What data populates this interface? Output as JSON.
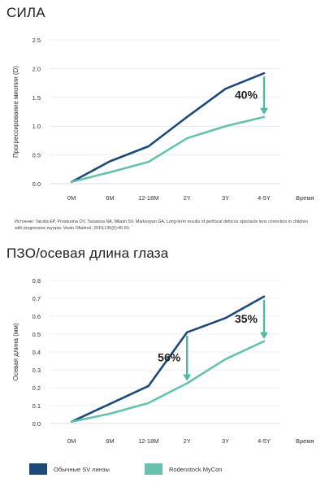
{
  "colors": {
    "series_dark": "#1c4a7a",
    "series_teal": "#66c2ae",
    "arrow": "#4fb9a3",
    "grid": "#dddddd",
    "text": "#333333"
  },
  "charts": [
    {
      "title": "СИЛА",
      "ylabel": "Прогрессирование миопии (D)",
      "xlabel": "Время",
      "citation": "Источник: Tarutta EP, Proskurina OV, Tarasova NA, Milash SV, Markosyan GA. Long-term results of perifocal defocus spectacle lens correction in children with progressive myopia. Vestn Oftalmol. 2019;135(5):46-53."
    },
    {
      "title": "ПЗО/осевая длина глаза",
      "ylabel": "Осевая длина (мм)",
      "xlabel": "Время"
    }
  ],
  "legend": [
    {
      "label": "Обычные SV линзы",
      "color": "#1c4a7a"
    },
    {
      "label": "Rodenstock MyCon",
      "color": "#66c2ae"
    }
  ],
  "chart_data": [
    {
      "type": "line",
      "title": "СИЛА",
      "categories": [
        "0M",
        "6M",
        "12-18M",
        "2Y",
        "3Y",
        "4-5Y"
      ],
      "series": [
        {
          "name": "Обычные SV линзы",
          "values": [
            0.03,
            0.39,
            0.65,
            1.16,
            1.65,
            1.92
          ]
        },
        {
          "name": "Rodenstock MyCon",
          "values": [
            0.03,
            0.2,
            0.38,
            0.79,
            1.0,
            1.16
          ]
        }
      ],
      "xlabel": "Время",
      "ylabel": "Прогрессирование миопии (D)",
      "yticks": [
        "0.0",
        "0.5",
        "1.0",
        "1.5",
        "2.0",
        "2.5"
      ],
      "ylim": [
        0,
        2.5
      ],
      "annotations": [
        {
          "text": "40%",
          "category": "4-5Y"
        }
      ]
    },
    {
      "type": "line",
      "title": "ПЗО/осевая длина глаза",
      "categories": [
        "0M",
        "6M",
        "12-18M",
        "2Y",
        "3Y",
        "4-5Y"
      ],
      "series": [
        {
          "name": "Обычные SV линзы",
          "values": [
            0.01,
            0.11,
            0.21,
            0.51,
            0.59,
            0.71
          ]
        },
        {
          "name": "Rodenstock MyCon",
          "values": [
            0.01,
            0.055,
            0.115,
            0.225,
            0.36,
            0.46
          ]
        }
      ],
      "xlabel": "Время",
      "ylabel": "Осевая длина (мм)",
      "yticks": [
        "0.0",
        "0.1",
        "0.2",
        "0.3",
        "0.4",
        "0.5",
        "0.6",
        "0.7",
        "0.8"
      ],
      "ylim": [
        0,
        0.8
      ],
      "annotations": [
        {
          "text": "56%",
          "category": "2Y"
        },
        {
          "text": "35%",
          "category": "4-5Y"
        }
      ]
    }
  ]
}
